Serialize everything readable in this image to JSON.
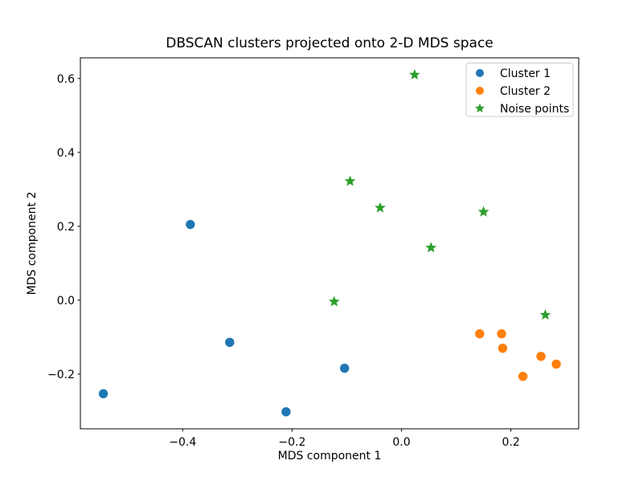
{
  "chart_data": {
    "type": "scatter",
    "title": "DBSCAN clusters projected onto 2-D MDS space",
    "xlabel": "MDS component 1",
    "ylabel": "MDS component 2",
    "xlim": [
      -0.587,
      0.324
    ],
    "ylim": [
      -0.348,
      0.656
    ],
    "x_ticks": [
      -0.4,
      -0.2,
      0.0,
      0.2
    ],
    "x_tick_labels": [
      "−0.4",
      "−0.2",
      "0.0",
      "0.2"
    ],
    "y_ticks": [
      -0.2,
      0.0,
      0.2,
      0.4,
      0.6
    ],
    "y_tick_labels": [
      "−0.2",
      "0.0",
      "0.2",
      "0.4",
      "0.6"
    ],
    "grid": false,
    "legend": {
      "location": "upper right"
    },
    "series": [
      {
        "name": "Cluster 1",
        "marker": "circle",
        "color": "#1f77b4",
        "points": [
          [
            -0.545,
            -0.253
          ],
          [
            -0.386,
            0.205
          ],
          [
            -0.314,
            -0.114
          ],
          [
            -0.211,
            -0.302
          ],
          [
            -0.104,
            -0.184
          ]
        ]
      },
      {
        "name": "Cluster 2",
        "marker": "circle",
        "color": "#ff7f0e",
        "points": [
          [
            0.143,
            -0.091
          ],
          [
            0.183,
            -0.091
          ],
          [
            0.185,
            -0.13
          ],
          [
            0.255,
            -0.152
          ],
          [
            0.283,
            -0.173
          ],
          [
            0.222,
            -0.206
          ]
        ]
      },
      {
        "name": "Noise points",
        "marker": "star",
        "color": "#2ca02c",
        "points": [
          [
            0.024,
            0.61
          ],
          [
            -0.094,
            0.322
          ],
          [
            -0.039,
            0.25
          ],
          [
            0.15,
            0.239
          ],
          [
            0.054,
            0.142
          ],
          [
            -0.123,
            -0.004
          ],
          [
            0.263,
            -0.04
          ]
        ]
      }
    ]
  }
}
